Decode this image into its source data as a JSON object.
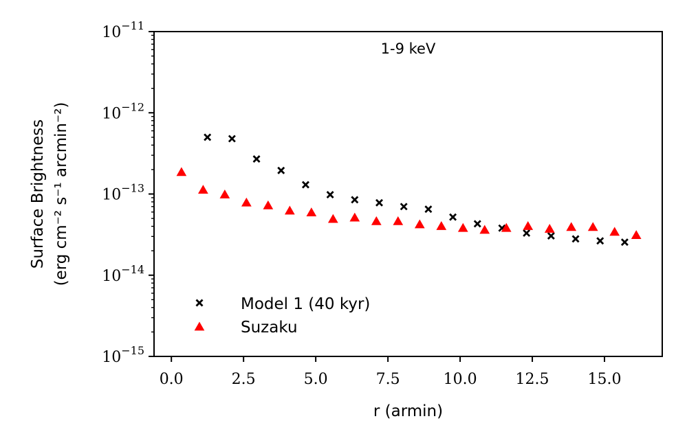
{
  "chart_data": {
    "type": "scatter",
    "title": "",
    "annotation": "1-9 keV",
    "xlabel": "r (armin)",
    "ylabel_line1": "Surface Brightness",
    "ylabel_line2": "(erg cm⁻² s⁻¹ arcmin⁻²)",
    "xlim": [
      -0.6,
      17.0
    ],
    "ylim": [
      1e-15,
      1e-11
    ],
    "yscale": "log",
    "x_ticks": [
      0.0,
      2.5,
      5.0,
      7.5,
      10.0,
      12.5,
      15.0
    ],
    "x_tick_labels": [
      "0.0",
      "2.5",
      "5.0",
      "7.5",
      "10.0",
      "12.5",
      "15.0"
    ],
    "y_ticks": [
      1e-15,
      1e-14,
      1e-13,
      1e-12,
      1e-11
    ],
    "y_tick_exponents": [
      "−15",
      "−14",
      "−13",
      "−12",
      "−11"
    ],
    "y_tick_base": "10",
    "legend_position": "lower-left",
    "series": [
      {
        "name": "Model 1 (40 kyr)",
        "marker": "x",
        "color": "#000000",
        "x": [
          1.25,
          2.1,
          2.95,
          3.8,
          4.65,
          5.5,
          6.35,
          7.2,
          8.05,
          8.9,
          9.75,
          10.6,
          11.45,
          12.3,
          13.15,
          14.0,
          14.85,
          15.7
        ],
        "y": [
          5e-13,
          4.8e-13,
          2.7e-13,
          1.95e-13,
          1.3e-13,
          9.8e-14,
          8.5e-14,
          7.8e-14,
          7e-14,
          6.5e-14,
          5.2e-14,
          4.3e-14,
          3.8e-14,
          3.3e-14,
          3.05e-14,
          2.8e-14,
          2.65e-14,
          2.55e-14
        ]
      },
      {
        "name": "Suzaku",
        "marker": "^",
        "color": "#ff0000",
        "x": [
          0.35,
          1.1,
          1.85,
          2.6,
          3.35,
          4.1,
          4.85,
          5.6,
          6.35,
          7.1,
          7.85,
          8.6,
          9.35,
          10.1,
          10.85,
          11.6,
          12.35,
          13.1,
          13.85,
          14.6,
          15.35,
          16.1
        ],
        "y": [
          1.85e-13,
          1.12e-13,
          9.8e-14,
          7.8e-14,
          7.2e-14,
          6.2e-14,
          5.9e-14,
          4.9e-14,
          5.1e-14,
          4.6e-14,
          4.6e-14,
          4.2e-14,
          4e-14,
          3.8e-14,
          3.6e-14,
          3.8e-14,
          4e-14,
          3.7e-14,
          3.9e-14,
          3.9e-14,
          3.4e-14,
          3.1e-14
        ]
      }
    ]
  }
}
